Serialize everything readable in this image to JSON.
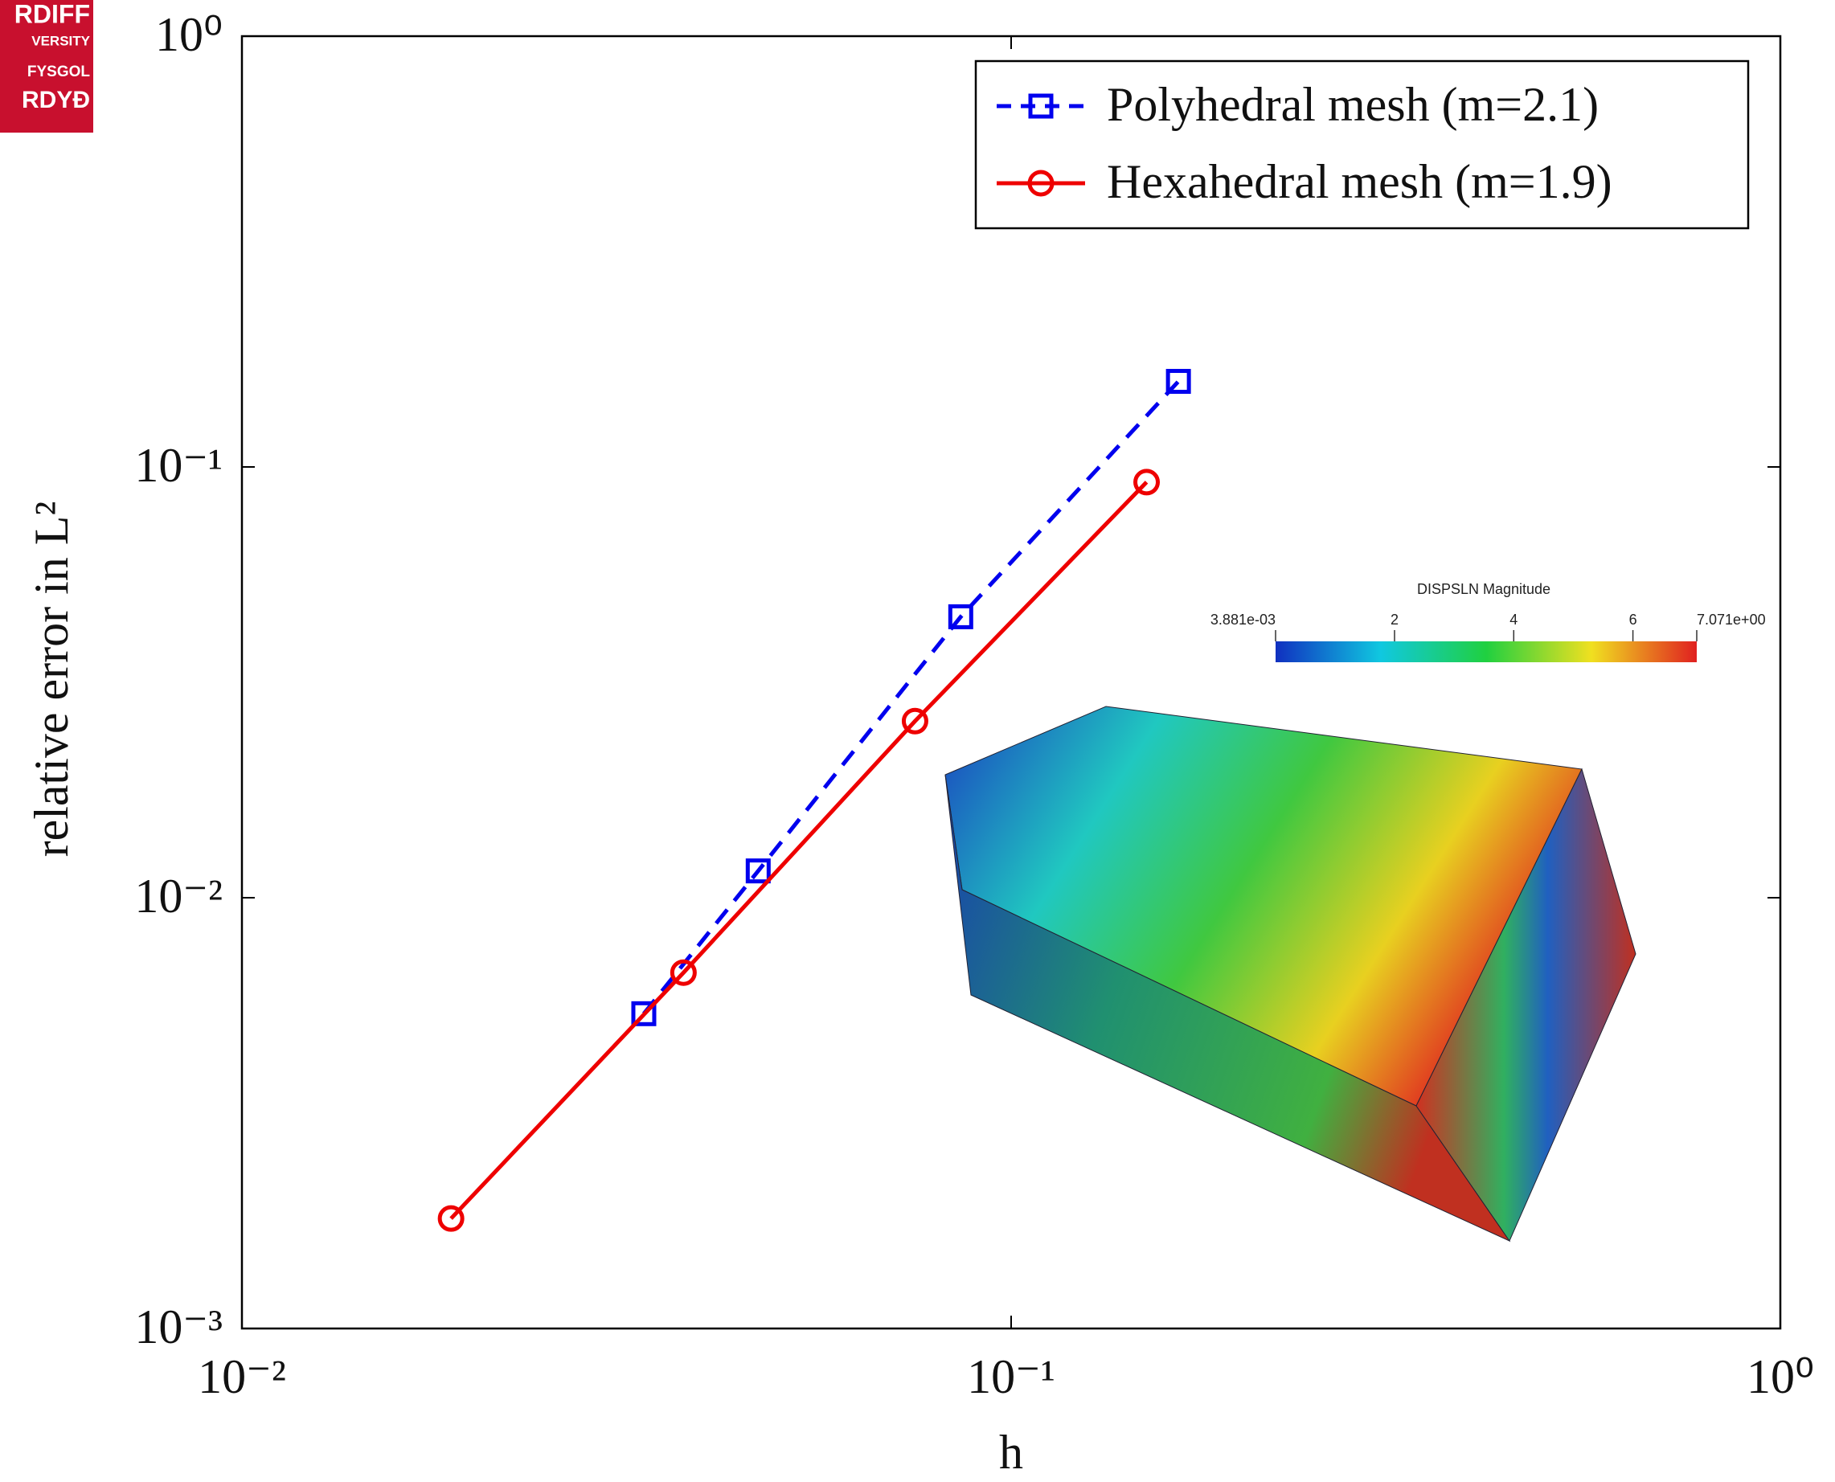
{
  "chart_data": {
    "type": "line",
    "x_label": "h",
    "y_label": "relative error in L²",
    "xscale": "log",
    "yscale": "log",
    "xlim": [
      0.01,
      1
    ],
    "ylim": [
      0.001,
      1
    ],
    "xticks": [
      {
        "value": 0.01,
        "label": "10⁻²"
      },
      {
        "value": 0.1,
        "label": "10⁻¹"
      },
      {
        "value": 1,
        "label": "10⁰"
      }
    ],
    "yticks": [
      {
        "value": 0.001,
        "label": "10⁻³"
      },
      {
        "value": 0.01,
        "label": "10⁻²"
      },
      {
        "value": 0.1,
        "label": "10⁻¹"
      },
      {
        "value": 1,
        "label": "10⁰"
      }
    ],
    "grid": false,
    "legend": "upper right",
    "series": [
      {
        "name": "Polyhedral mesh (m=2.1)",
        "color": "#0000ee",
        "dash": true,
        "marker": "square",
        "x": [
          0.0333,
          0.0469,
          0.086,
          0.165
        ],
        "values": [
          0.00538,
          0.01154,
          0.0449,
          0.158
        ]
      },
      {
        "name": "Hexahedral mesh (m=1.9)",
        "color": "#ee0000",
        "dash": false,
        "marker": "circle",
        "x": [
          0.0187,
          0.0375,
          0.075,
          0.15
        ],
        "values": [
          0.0018,
          0.0067,
          0.0257,
          0.0922
        ]
      }
    ]
  },
  "inset": {
    "title": "DISPSLN Magnitude",
    "lim": [
      0.003881,
      7.071
    ],
    "ticks": [
      {
        "value": 0.003881,
        "label": "3.881e-03"
      },
      2,
      4,
      6,
      {
        "value": 7.071,
        "label": "7.071e+00"
      }
    ]
  },
  "logo": {
    "lines": [
      "RDIFF",
      "VERSITY",
      "FYSGOL",
      "RDYÐ"
    ]
  }
}
